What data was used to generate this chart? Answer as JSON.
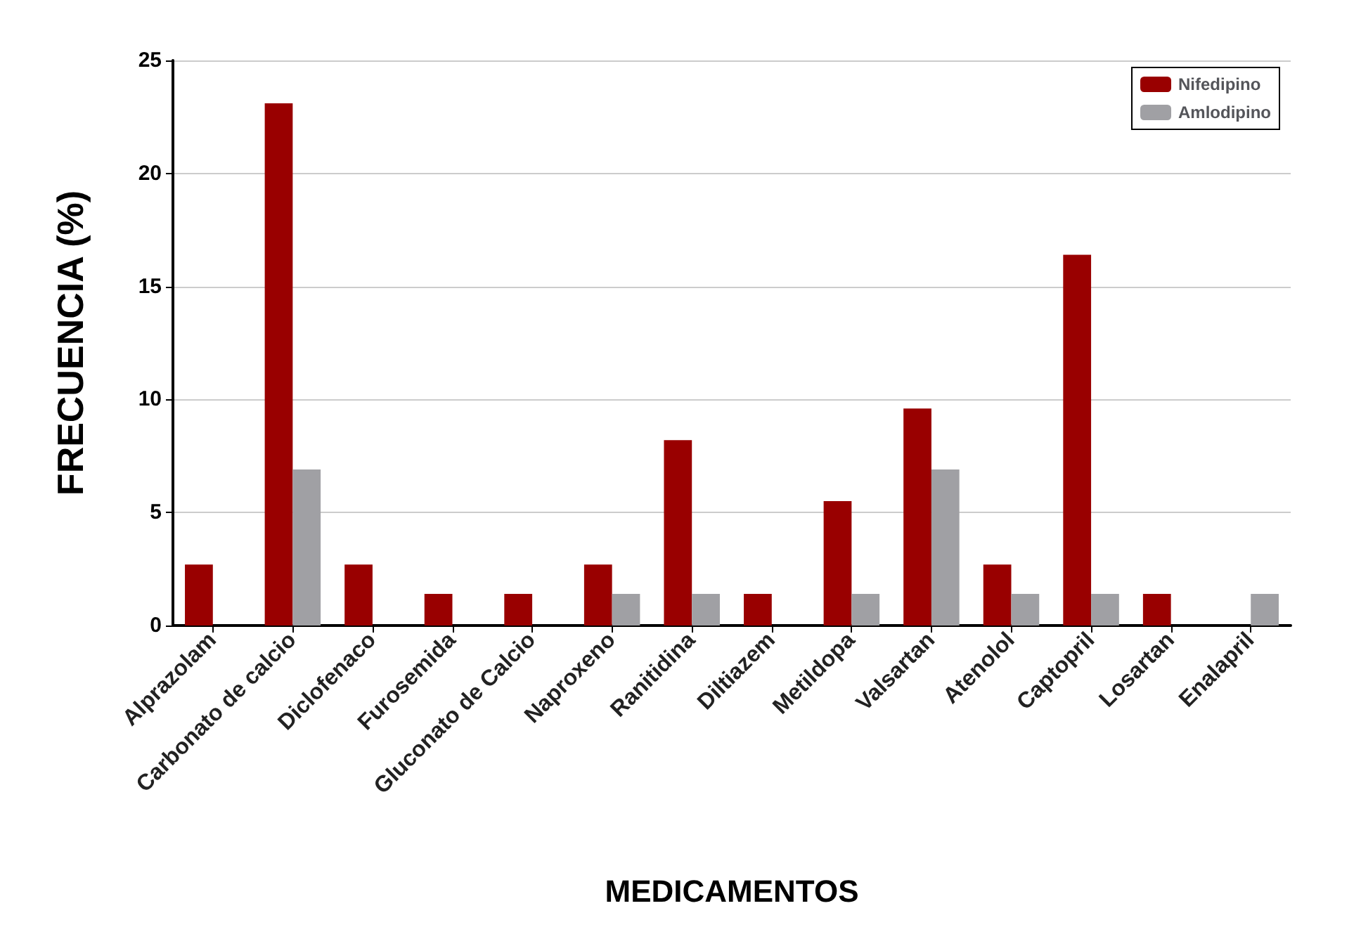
{
  "chart_data": {
    "type": "bar",
    "xlabel": "MEDICAMENTOS",
    "ylabel": "FRECUENCIA (%)",
    "categories": [
      "Alprazolam",
      "Carbonato de calcio",
      "Diclofenaco",
      "Furosemida",
      "Gluconato de Calcio",
      "Naproxeno",
      "Ranitidina",
      "Diltiazem",
      "Metildopa",
      "Valsartan",
      "Atenolol",
      "Captopril",
      "Losartan",
      "Enalapril"
    ],
    "series": [
      {
        "name": "Nifedipino",
        "color": "#990000",
        "values": [
          2.7,
          23.1,
          2.7,
          1.4,
          1.4,
          2.7,
          8.2,
          1.4,
          5.5,
          9.6,
          2.7,
          16.4,
          1.4,
          0
        ]
      },
      {
        "name": "Amlodipino",
        "color": "#a0a0a4",
        "values": [
          0,
          6.9,
          0,
          0,
          0,
          1.4,
          1.4,
          0,
          1.4,
          6.9,
          1.4,
          1.4,
          0,
          1.4
        ]
      }
    ],
    "ylim": [
      0,
      25
    ],
    "yticks": [
      0,
      5,
      10,
      15,
      20,
      25
    ],
    "grid": "y",
    "legend": "top right"
  }
}
